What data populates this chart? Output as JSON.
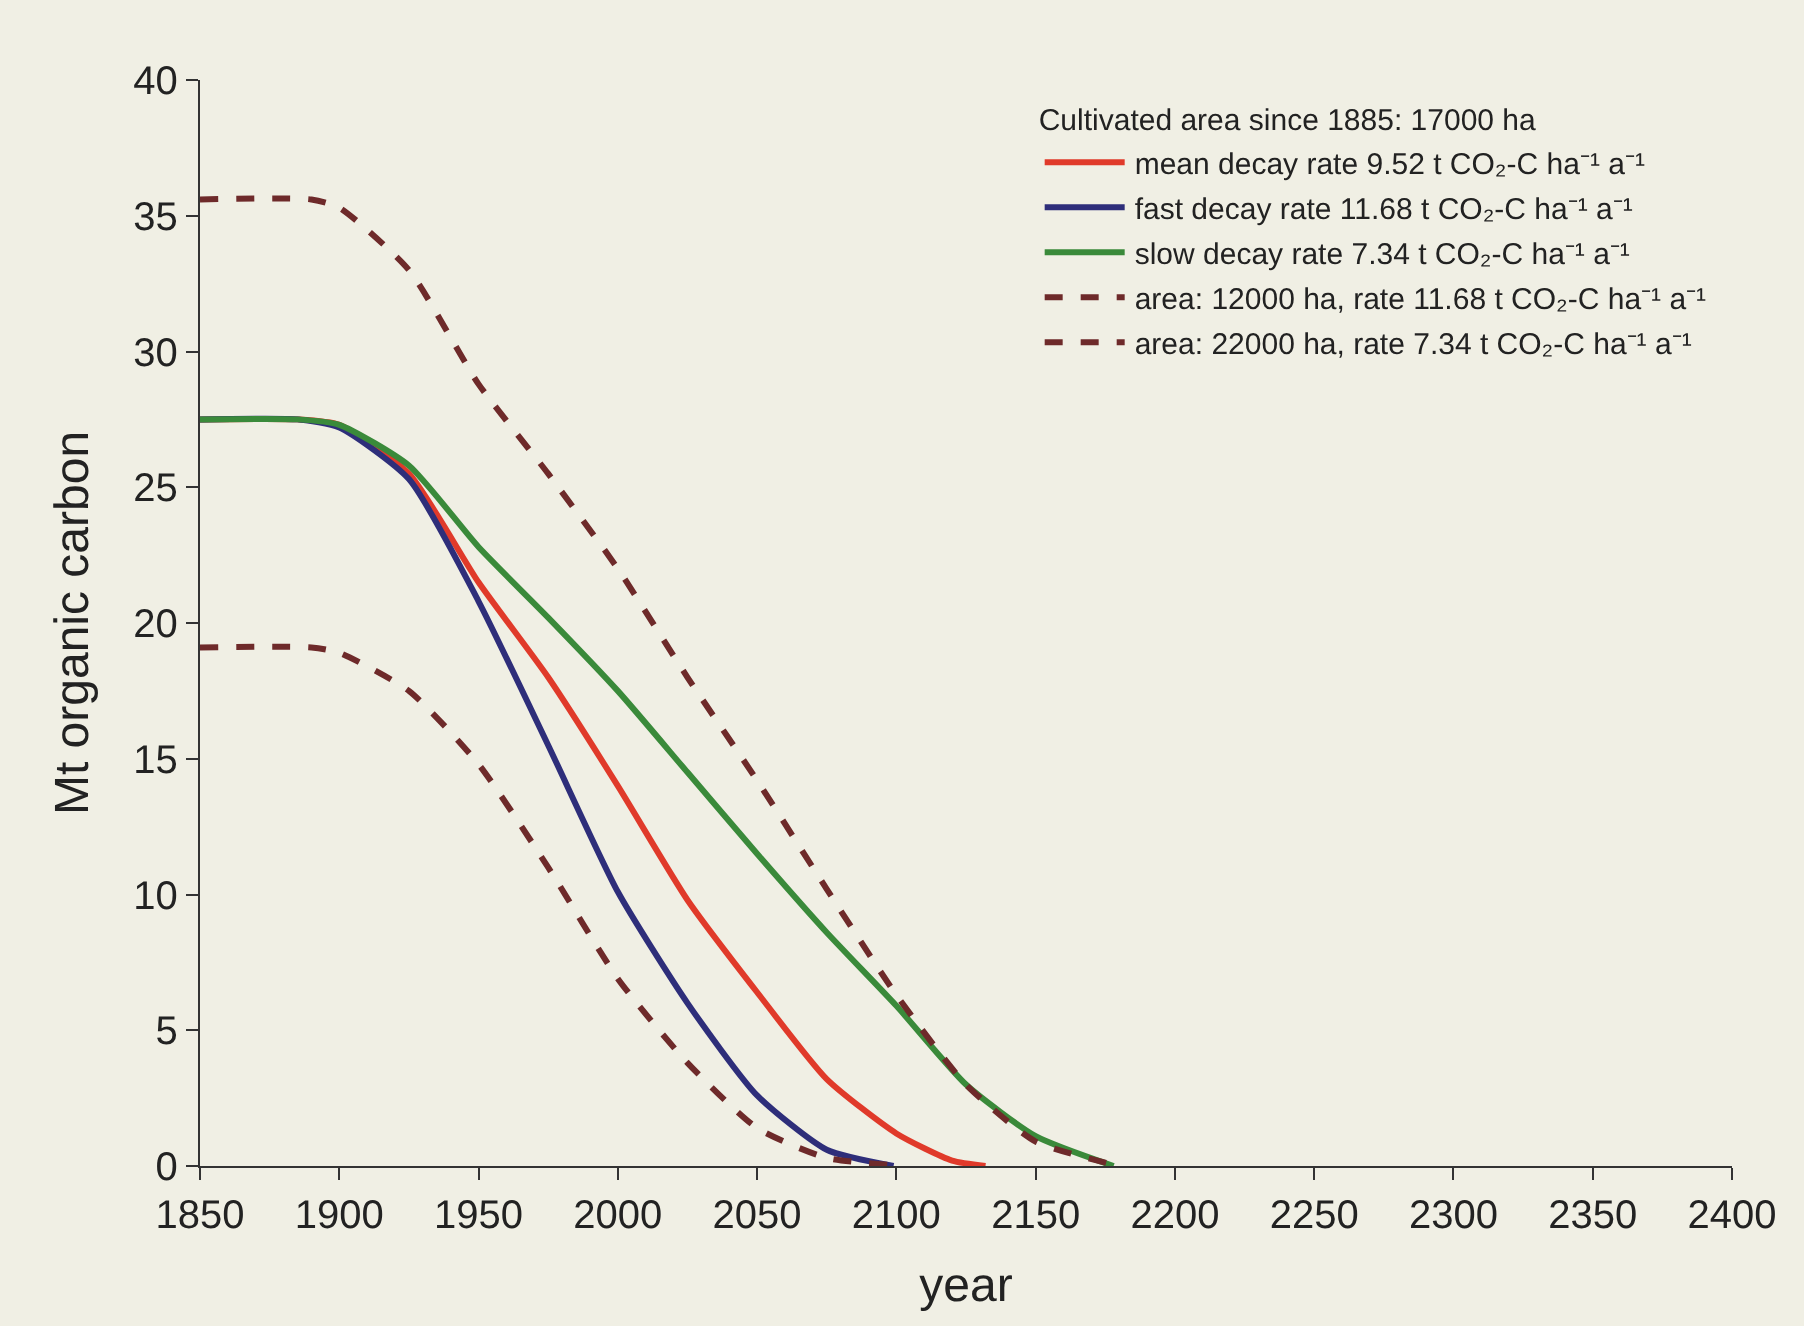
{
  "chart_data": {
    "type": "line",
    "xlabel": "year",
    "ylabel": "Mt organic carbon",
    "legend_title": "Cultivated area since 1885: 17000 ha",
    "xlim": [
      1850,
      2400
    ],
    "xticks": [
      1850,
      1900,
      1950,
      2000,
      2050,
      2100,
      2150,
      2200,
      2250,
      2300,
      2350,
      2400
    ],
    "ylim": [
      0,
      40
    ],
    "yticks": [
      0,
      5,
      10,
      15,
      20,
      25,
      30,
      35,
      40
    ],
    "grid": false,
    "legend": "top right",
    "marker": "none",
    "line_style": "solid",
    "series": [
      {
        "name": "mean decay rate 9.52 t CO₂-C ha⁻¹ a⁻¹",
        "color": "#e03a2a",
        "x": [
          1850,
          1885,
          1900,
          1925,
          1950,
          1975,
          2000,
          2025,
          2050,
          2075,
          2100,
          2120,
          2132
        ],
        "values": [
          27.5,
          27.5,
          27.3,
          25.5,
          21.5,
          18,
          14,
          9.8,
          6.4,
          3.2,
          1.2,
          0.2,
          0
        ]
      },
      {
        "name": "fast decay rate 11.68 t CO₂-C ha⁻¹ a⁻¹",
        "color": "#2e2e7a",
        "x": [
          1850,
          1885,
          1900,
          1925,
          1950,
          1975,
          2000,
          2025,
          2050,
          2075,
          2099
        ],
        "values": [
          27.5,
          27.5,
          27.2,
          25.3,
          20.8,
          15.5,
          10.1,
          6.0,
          2.6,
          0.6,
          0
        ]
      },
      {
        "name": "slow decay rate 7.34 t CO₂-C ha⁻¹ a⁻¹",
        "color": "#3a8a3a",
        "x": [
          1850,
          1885,
          1900,
          1925,
          1950,
          1975,
          2000,
          2025,
          2050,
          2075,
          2100,
          2125,
          2150,
          2178
        ],
        "values": [
          27.5,
          27.5,
          27.3,
          25.8,
          22.8,
          20.2,
          17.5,
          14.5,
          11.5,
          8.6,
          5.9,
          3.0,
          1.1,
          0
        ]
      },
      {
        "name": "area: 12000 ha, rate 11.68 t CO₂-C ha⁻¹ a⁻¹",
        "color": "#6e2a2a",
        "line_style": "dashed",
        "x": [
          1850,
          1890,
          1900,
          1925,
          1950,
          1975,
          2000,
          2025,
          2050,
          2075,
          2103
        ],
        "values": [
          19.1,
          19.1,
          18.9,
          17.5,
          14.8,
          11,
          6.9,
          3.8,
          1.4,
          0.3,
          0
        ]
      },
      {
        "name": "area: 22000 ha, rate 7.34 t CO₂-C ha⁻¹ a⁻¹",
        "color": "#6e2a2a",
        "line_style": "dashed",
        "x": [
          1850,
          1890,
          1900,
          1925,
          1950,
          1975,
          2000,
          2025,
          2050,
          2075,
          2100,
          2125,
          2150,
          2180
        ],
        "values": [
          35.6,
          35.6,
          35.3,
          33,
          28.8,
          25.5,
          22,
          18,
          14.2,
          10.2,
          6.3,
          3.0,
          0.9,
          0
        ]
      }
    ]
  }
}
